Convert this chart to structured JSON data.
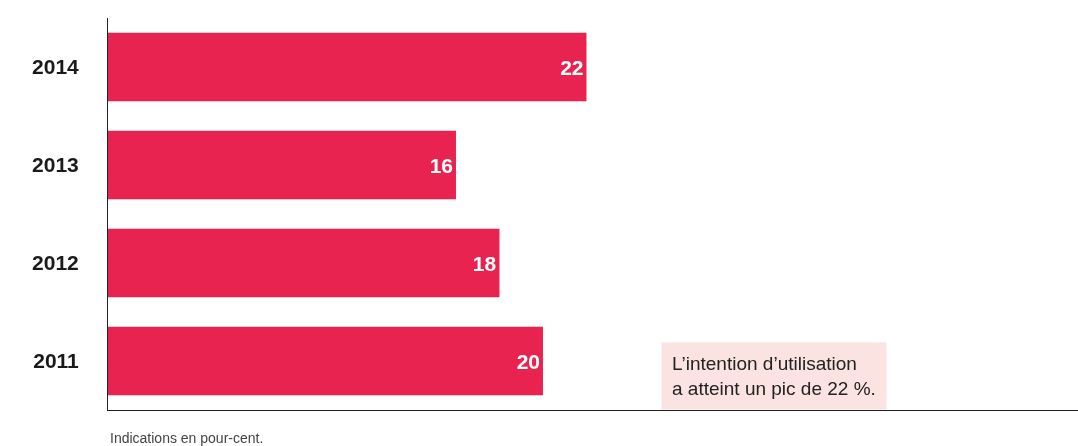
{
  "chart_data": {
    "type": "bar",
    "orientation": "horizontal",
    "categories": [
      "2014",
      "2013",
      "2012",
      "2011"
    ],
    "values": [
      22,
      16,
      18,
      20
    ],
    "color": "#e8234f",
    "data_labels": true,
    "xlim": [
      0,
      44.6
    ],
    "tick_labels": "y",
    "grid": false,
    "legend": false,
    "annotations": [
      "L’intention d’utilisation\na atteint un pic de 22 %.",
      "Indications en pour-cent."
    ]
  }
}
